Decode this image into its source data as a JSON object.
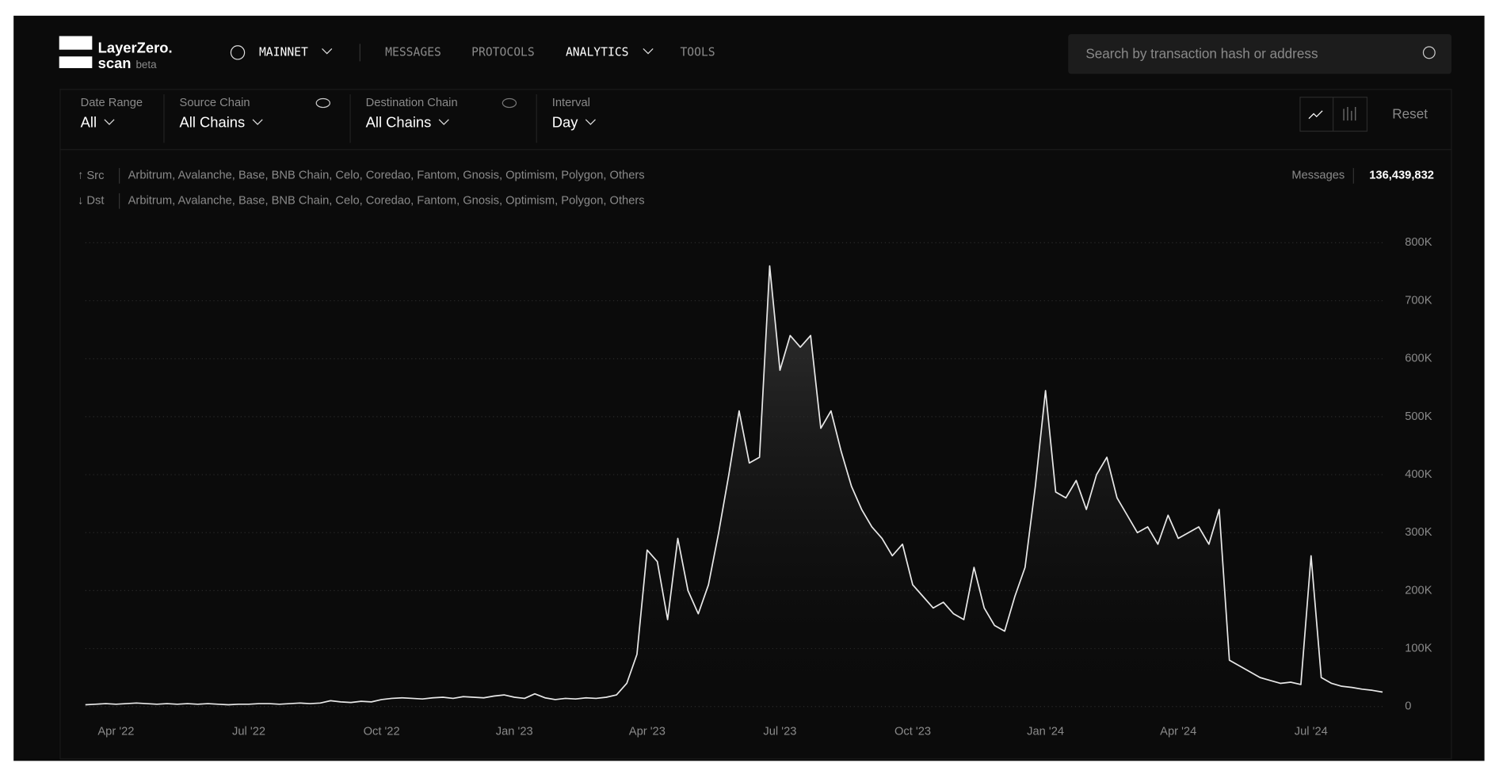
{
  "nav": {
    "logo": "LayerZero.",
    "logo_sub": "scan",
    "logo_badge": "beta",
    "network": "MAINNET",
    "menu": [
      "MESSAGES",
      "PROTOCOLS",
      "ANALYTICS",
      "TOOLS"
    ],
    "search_placeholder": "Search by transaction hash or address"
  },
  "filters": [
    {
      "label": "Date Range",
      "value": "All"
    },
    {
      "label": "Source Chain",
      "value": "All Chains"
    },
    {
      "label": "Destination Chain",
      "value": "All Chains"
    },
    {
      "label": "Interval",
      "value": "Day"
    }
  ],
  "reset": "Reset",
  "summary": {
    "src_label": "Src",
    "src": "Arbitrum, Avalanche, Base, BNB Chain, Celo, Coredao, Fantom, Gnosis, Optimism, Polygon, Others",
    "dst_label": "Dst",
    "dst": "Arbitrum, Avalanche, Base, BNB Chain, Celo, Coredao, Fantom, Gnosis, Optimism, Polygon, Others",
    "messages_label": "Messages",
    "messages": "136,439,832"
  },
  "chart_data": {
    "type": "line",
    "color": "#e8e8e8",
    "grid": true,
    "categories": [
      null,
      null,
      null,
      "Apr '22",
      null,
      null,
      null,
      null,
      null,
      null,
      null,
      null,
      null,
      null,
      null,
      null,
      "Jul '22",
      null,
      null,
      null,
      null,
      null,
      null,
      null,
      null,
      null,
      null,
      null,
      null,
      "Oct '22",
      null,
      null,
      null,
      null,
      null,
      null,
      null,
      null,
      null,
      null,
      null,
      null,
      "Jan '23",
      null,
      null,
      null,
      null,
      null,
      null,
      null,
      null,
      null,
      null,
      null,
      null,
      "Apr '23",
      null,
      null,
      null,
      null,
      null,
      null,
      null,
      null,
      null,
      null,
      null,
      null,
      "Jul '23",
      null,
      null,
      null,
      null,
      null,
      null,
      null,
      null,
      null,
      null,
      null,
      null,
      "Oct '23",
      null,
      null,
      null,
      null,
      null,
      null,
      null,
      null,
      null,
      null,
      null,
      null,
      "Jan '24",
      null,
      null,
      null,
      null,
      null,
      null,
      null,
      null,
      null,
      null,
      null,
      null,
      "Apr '24",
      null,
      null,
      null,
      null,
      null,
      null,
      null,
      null,
      null,
      null,
      null,
      null,
      "Jul '24",
      null,
      null,
      null,
      null,
      null,
      null,
      null
    ],
    "values": [
      3000,
      4000,
      5000,
      4000,
      5000,
      6000,
      5000,
      4000,
      5000,
      4000,
      5000,
      4000,
      5000,
      4000,
      3000,
      4000,
      4000,
      5000,
      5000,
      4000,
      5000,
      6000,
      5000,
      6000,
      10000,
      8000,
      7000,
      9000,
      8000,
      12000,
      14000,
      15000,
      14000,
      13000,
      15000,
      16000,
      14000,
      17000,
      16000,
      15000,
      18000,
      20000,
      16000,
      14000,
      22000,
      15000,
      12000,
      14000,
      13000,
      15000,
      14000,
      16000,
      20000,
      40000,
      90000,
      270000,
      250000,
      150000,
      290000,
      200000,
      160000,
      210000,
      300000,
      400000,
      510000,
      420000,
      430000,
      760000,
      580000,
      640000,
      620000,
      640000,
      480000,
      510000,
      440000,
      380000,
      340000,
      310000,
      290000,
      260000,
      280000,
      210000,
      190000,
      170000,
      180000,
      160000,
      150000,
      240000,
      170000,
      140000,
      130000,
      190000,
      240000,
      380000,
      545000,
      370000,
      360000,
      390000,
      340000,
      400000,
      430000,
      360000,
      330000,
      300000,
      310000,
      280000,
      330000,
      290000,
      300000,
      310000,
      280000,
      340000,
      80000,
      70000,
      60000,
      50000,
      45000,
      40000,
      42000,
      38000,
      260000,
      50000,
      40000,
      35000,
      33000,
      30000,
      28000,
      25000
    ],
    "ylim": [
      0,
      800000
    ],
    "yticks": [
      0,
      {
        "value": 100000,
        "label": "100K"
      },
      {
        "value": 200000,
        "label": "200K"
      },
      {
        "value": 300000,
        "label": "300K"
      },
      {
        "value": 400000,
        "label": "400K"
      },
      {
        "value": 500000,
        "label": "500K"
      },
      {
        "value": 600000,
        "label": "600K"
      },
      {
        "value": 700000,
        "label": "700K"
      },
      {
        "value": 800000,
        "label": "800K"
      }
    ]
  }
}
